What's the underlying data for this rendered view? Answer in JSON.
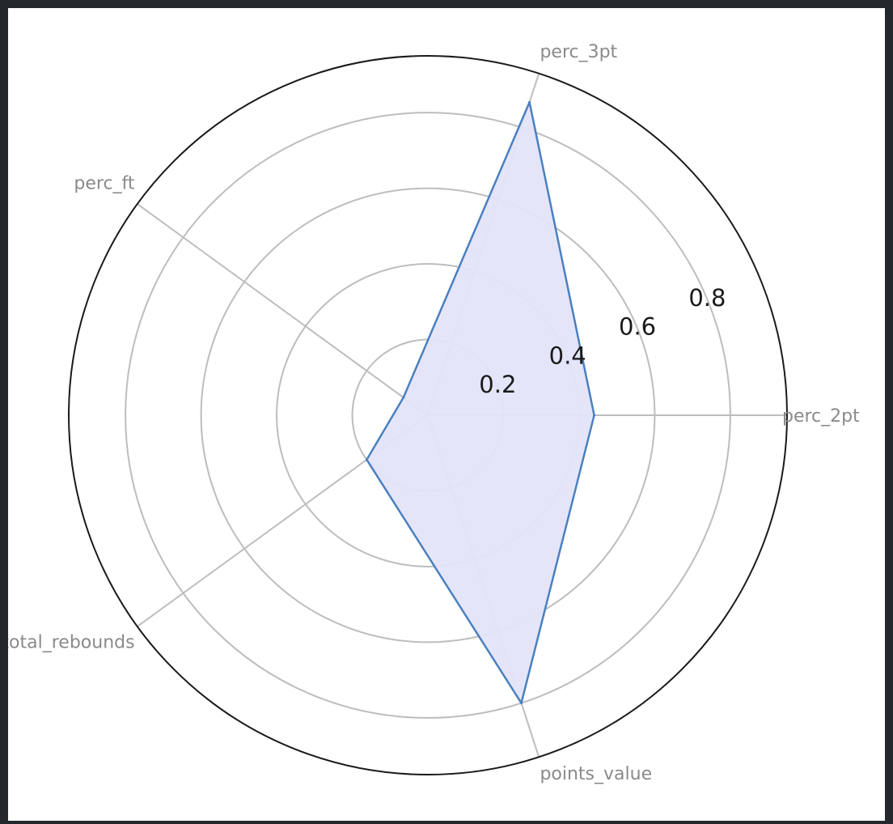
{
  "chart_data": {
    "type": "radar",
    "title": "",
    "categories": [
      "perc_2pt",
      "perc_3pt",
      "perc_ft",
      "total_rebounds",
      "points_value"
    ],
    "series": [
      {
        "values": [
          0.44,
          0.87,
          0.08,
          0.2,
          0.8
        ],
        "line_color": "#4a80c0",
        "fill_color": "#e4e4fa"
      }
    ],
    "rlim": [
      0,
      0.95
    ],
    "r_ticks": [
      0.2,
      0.4,
      0.6,
      0.8
    ],
    "r_tick_labels": [
      "0.2",
      "0.4",
      "0.6",
      "0.8"
    ],
    "grid": true,
    "colors": {
      "grid": "#bdbdbd",
      "outer_circle": "#1a1a1a",
      "axis_label": "#8a8a8a",
      "tick_label": "#1a1a1a",
      "page_background": "#24272b",
      "figure_background": "#ffffff"
    }
  }
}
